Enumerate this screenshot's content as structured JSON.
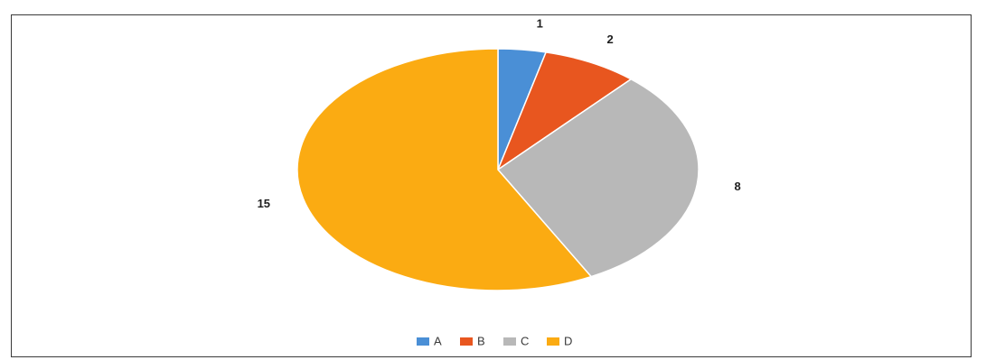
{
  "chart_data": {
    "type": "pie",
    "categories": [
      "A",
      "B",
      "C",
      "D"
    ],
    "values": [
      1,
      2,
      8,
      15
    ],
    "colors": [
      "#4a8fd6",
      "#e8561f",
      "#b8b8b8",
      "#fbab12"
    ],
    "data_labels": [
      "1",
      "2",
      "8",
      "15"
    ],
    "legend": {
      "placement": "bottom",
      "entries": [
        "A",
        "B",
        "C",
        "D"
      ]
    },
    "title": "",
    "start_angle_deg": 0,
    "direction": "clockwise"
  }
}
